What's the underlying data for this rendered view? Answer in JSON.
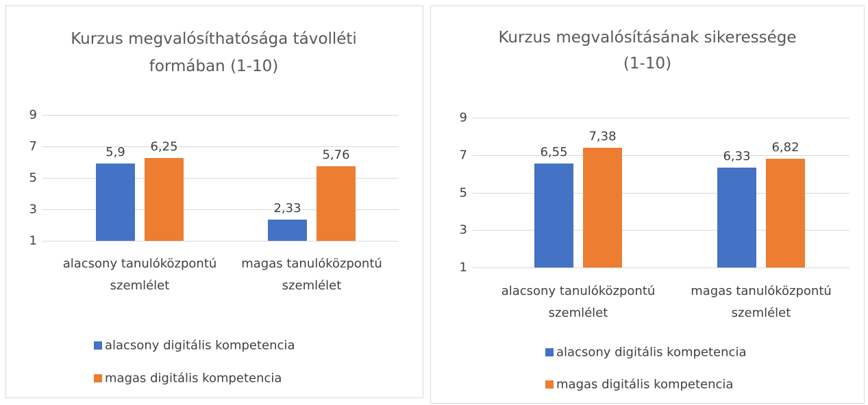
{
  "chart_data": [
    {
      "type": "bar",
      "title": [
        "Kurzus megvalósíthatósága távolléti",
        "formában (1-10)"
      ],
      "categories": [
        "alacsony tanulóközpontú szemlélet",
        "magas tanulóközpontú szemlélet"
      ],
      "series": [
        {
          "name": "alacsony digitális kompetencia",
          "color": "#4472c4",
          "values": [
            5.9,
            2.33
          ],
          "value_labels": [
            "5,9",
            "2,33"
          ]
        },
        {
          "name": "magas digitális kompetencia",
          "color": "#ed7d31",
          "values": [
            6.25,
            5.76
          ],
          "value_labels": [
            "6,25",
            "5,76"
          ]
        }
      ],
      "ylim": [
        1,
        9
      ],
      "yticks": [
        1,
        3,
        5,
        7,
        9
      ],
      "grid": true
    },
    {
      "type": "bar",
      "title": [
        "Kurzus megvalósításának sikeressége",
        "(1-10)"
      ],
      "categories": [
        "alacsony tanulóközpontú szemlélet",
        "magas tanulóközpontú szemlélet"
      ],
      "series": [
        {
          "name": "alacsony digitális kompetencia",
          "color": "#4472c4",
          "values": [
            6.55,
            6.33
          ],
          "value_labels": [
            "6,55",
            "6,33"
          ]
        },
        {
          "name": "magas digitális kompetencia",
          "color": "#ed7d31",
          "values": [
            7.38,
            6.82
          ],
          "value_labels": [
            "7,38",
            "6,82"
          ]
        }
      ],
      "ylim": [
        1,
        9
      ],
      "yticks": [
        1,
        3,
        5,
        7,
        9
      ],
      "grid": true
    }
  ]
}
